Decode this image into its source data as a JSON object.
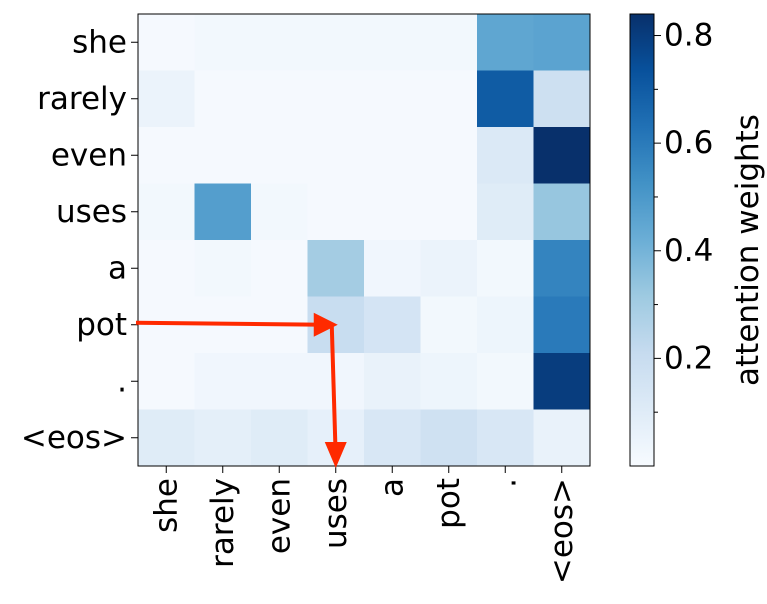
{
  "chart_data": {
    "type": "heatmap",
    "title": "",
    "xlabel": "",
    "ylabel": "",
    "x_categories": [
      "she",
      "rarely",
      "even",
      "uses",
      "a",
      "pot",
      ".",
      "<eos>"
    ],
    "y_categories": [
      "she",
      "rarely",
      "even",
      "uses",
      "a",
      "pot",
      ".",
      "<eos>"
    ],
    "values": [
      [
        0.01,
        0.02,
        0.02,
        0.02,
        0.02,
        0.02,
        0.45,
        0.46
      ],
      [
        0.05,
        0.01,
        0.01,
        0.01,
        0.01,
        0.01,
        0.7,
        0.18
      ],
      [
        0.01,
        0.01,
        0.01,
        0.01,
        0.01,
        0.01,
        0.12,
        0.85
      ],
      [
        0.02,
        0.48,
        0.02,
        0.01,
        0.01,
        0.01,
        0.1,
        0.33
      ],
      [
        0.01,
        0.02,
        0.01,
        0.3,
        0.03,
        0.05,
        0.02,
        0.57
      ],
      [
        0.01,
        0.01,
        0.01,
        0.2,
        0.15,
        0.02,
        0.04,
        0.6
      ],
      [
        0.01,
        0.03,
        0.03,
        0.03,
        0.06,
        0.04,
        0.02,
        0.8
      ],
      [
        0.1,
        0.08,
        0.1,
        0.07,
        0.13,
        0.17,
        0.13,
        0.06
      ]
    ],
    "colorbar": {
      "label": "attention weights",
      "range": [
        0.0,
        0.84
      ],
      "ticks": [
        0.2,
        0.4,
        0.6,
        0.8
      ],
      "tick_labels": [
        "0.2",
        "0.4",
        "0.6",
        "0.8"
      ],
      "minor_ticks": [
        0.1,
        0.3,
        0.5,
        0.7
      ],
      "colormap": "Blues"
    },
    "annotation_arrow": {
      "color": "#ff2a00",
      "from_row": "pot",
      "via_column": "uses",
      "to_axis": "x"
    },
    "grid": false
  }
}
